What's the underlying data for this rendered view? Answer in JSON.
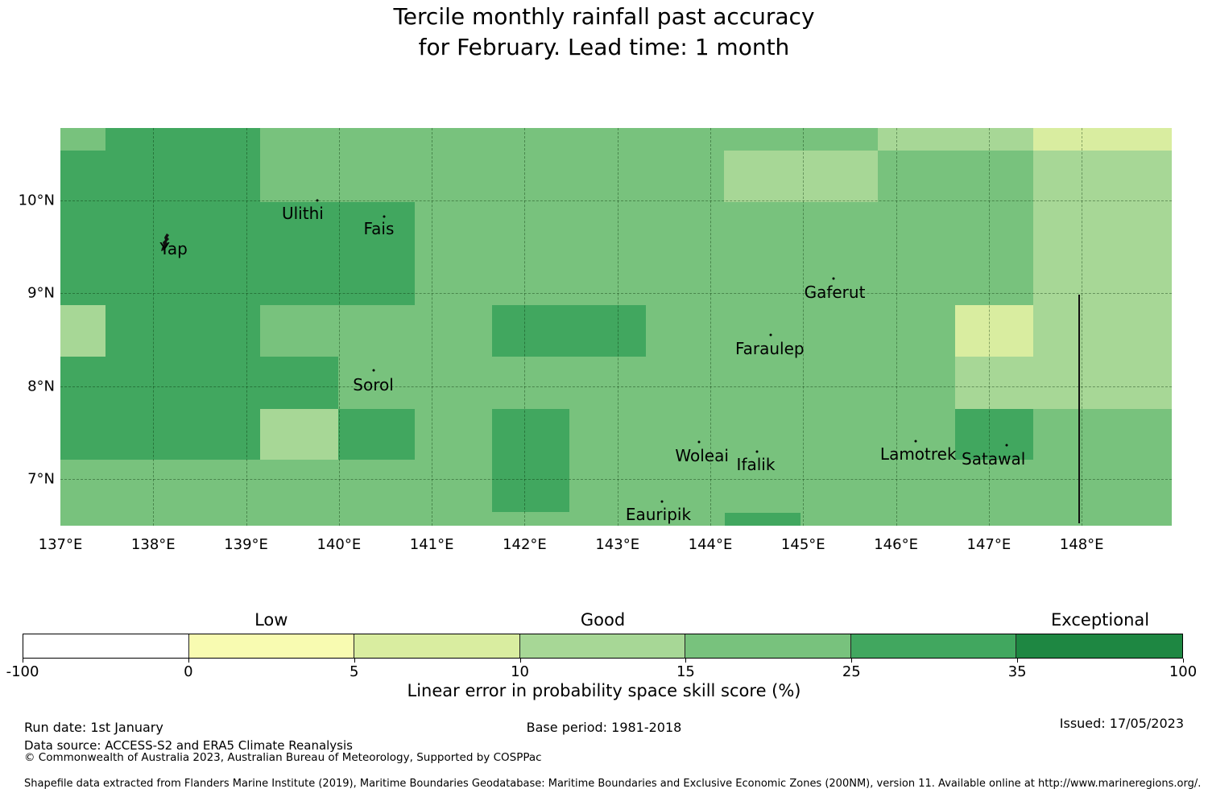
{
  "title": {
    "line1": "Tercile monthly rainfall past accuracy",
    "line2": "for February. Lead time: 1 month"
  },
  "chart_data": {
    "type": "heatmap",
    "subtype": "geographic-skill-map",
    "lon_range": [
      137.0,
      148.97
    ],
    "lat_range": [
      6.5,
      10.78
    ],
    "grid_lons": [
      138,
      139,
      140,
      141,
      142,
      143,
      144,
      145,
      146,
      147,
      148
    ],
    "grid_lats": [
      7,
      8,
      9,
      10
    ],
    "x_ticks": [
      {
        "lon": 137,
        "label": "137°E"
      },
      {
        "lon": 138,
        "label": "138°E"
      },
      {
        "lon": 139,
        "label": "139°E"
      },
      {
        "lon": 140,
        "label": "140°E"
      },
      {
        "lon": 141,
        "label": "141°E"
      },
      {
        "lon": 142,
        "label": "142°E"
      },
      {
        "lon": 143,
        "label": "143°E"
      },
      {
        "lon": 144,
        "label": "144°E"
      },
      {
        "lon": 145,
        "label": "145°E"
      },
      {
        "lon": 146,
        "label": "146°E"
      },
      {
        "lon": 147,
        "label": "147°E"
      },
      {
        "lon": 148,
        "label": "148°E"
      }
    ],
    "y_ticks": [
      {
        "lat": 10,
        "label": "10°N"
      },
      {
        "lat": 9,
        "label": "9°N"
      },
      {
        "lat": 8,
        "label": "8°N"
      },
      {
        "lat": 7,
        "label": "7°N"
      }
    ],
    "bins": [
      {
        "range": "-100 to 0",
        "color": "#ffffff"
      },
      {
        "range": "0 to 5",
        "color": "#f8fbb1"
      },
      {
        "range": "5 to 10",
        "color": "#d9eda0"
      },
      {
        "range": "10 to 15",
        "color": "#a7d796"
      },
      {
        "range": "15 to 25",
        "color": "#78c27d"
      },
      {
        "range": "25 to 35",
        "color": "#41a75f"
      },
      {
        "range": "35 to 100",
        "color": "#1e8742"
      }
    ],
    "background_bin": "15 to 25",
    "regions": [
      {
        "bin": "25 to 35",
        "lon": [
          137.49,
          139.15
        ],
        "lat": [
          10.54,
          10.78
        ]
      },
      {
        "bin": "25 to 35",
        "lon": [
          137.0,
          139.15
        ],
        "lat": [
          9.98,
          10.54
        ]
      },
      {
        "bin": "25 to 35",
        "lon": [
          137.0,
          140.82
        ],
        "lat": [
          8.87,
          9.98
        ]
      },
      {
        "bin": "25 to 35",
        "lon": [
          137.49,
          139.15
        ],
        "lat": [
          8.32,
          8.87
        ]
      },
      {
        "bin": "25 to 35",
        "lon": [
          137.0,
          139.99
        ],
        "lat": [
          7.76,
          8.32
        ]
      },
      {
        "bin": "25 to 35",
        "lon": [
          137.0,
          139.15
        ],
        "lat": [
          7.21,
          7.76
        ]
      },
      {
        "bin": "25 to 35",
        "lon": [
          139.99,
          140.82
        ],
        "lat": [
          7.21,
          7.76
        ]
      },
      {
        "bin": "25 to 35",
        "lon": [
          141.65,
          143.31
        ],
        "lat": [
          8.32,
          8.87
        ]
      },
      {
        "bin": "25 to 35",
        "lon": [
          141.65,
          142.48
        ],
        "lat": [
          6.65,
          7.76
        ]
      },
      {
        "bin": "25 to 35",
        "lon": [
          146.64,
          147.48
        ],
        "lat": [
          7.21,
          7.76
        ]
      },
      {
        "bin": "25 to 35",
        "lon": [
          144.16,
          144.97
        ],
        "lat": [
          6.5,
          6.64
        ]
      },
      {
        "bin": "10 to 15",
        "lon": [
          137.0,
          137.49
        ],
        "lat": [
          8.32,
          8.87
        ]
      },
      {
        "bin": "10 to 15",
        "lon": [
          144.15,
          145.8
        ],
        "lat": [
          9.98,
          10.54
        ]
      },
      {
        "bin": "10 to 15",
        "lon": [
          145.8,
          147.48
        ],
        "lat": [
          10.54,
          10.78
        ]
      },
      {
        "bin": "10 to 15",
        "lon": [
          147.48,
          148.97
        ],
        "lat": [
          7.76,
          10.54
        ]
      },
      {
        "bin": "10 to 15",
        "lon": [
          139.15,
          139.99
        ],
        "lat": [
          7.21,
          7.76
        ]
      },
      {
        "bin": "10 to 15",
        "lon": [
          146.64,
          147.48
        ],
        "lat": [
          7.76,
          8.32
        ]
      },
      {
        "bin": "5 to 10",
        "lon": [
          147.48,
          148.97
        ],
        "lat": [
          10.54,
          10.78
        ]
      },
      {
        "bin": "5 to 10",
        "lon": [
          146.64,
          147.48
        ],
        "lat": [
          8.32,
          8.87
        ]
      }
    ],
    "boundary_line": {
      "lon": 147.97,
      "lat_top": 8.99,
      "lat_bottom": 6.53
    },
    "islands": [
      {
        "name": "Yap",
        "lon": 138.22,
        "lat": 9.48,
        "marker_lon": 138.13,
        "marker_lat": 9.55,
        "marker": "island-outline"
      },
      {
        "name": "Ulithi",
        "lon": 139.61,
        "lat": 9.86,
        "marker_lon": 139.77,
        "marker_lat": 10.0,
        "marker": "dot"
      },
      {
        "name": "Fais",
        "lon": 140.43,
        "lat": 9.7,
        "marker_lon": 140.49,
        "marker_lat": 9.83,
        "marker": "dot"
      },
      {
        "name": "Sorol",
        "lon": 140.37,
        "lat": 8.02,
        "marker_lon": 140.37,
        "marker_lat": 8.17,
        "marker": "dot"
      },
      {
        "name": "Gaferut",
        "lon": 145.34,
        "lat": 9.01,
        "marker_lon": 145.33,
        "marker_lat": 9.16,
        "marker": "dot"
      },
      {
        "name": "Faraulep",
        "lon": 144.64,
        "lat": 8.41,
        "marker_lon": 144.65,
        "marker_lat": 8.55,
        "marker": "dot"
      },
      {
        "name": "Woleai",
        "lon": 143.91,
        "lat": 7.25,
        "marker_lon": 143.88,
        "marker_lat": 7.4,
        "marker": "dot"
      },
      {
        "name": "Ifalik",
        "lon": 144.49,
        "lat": 7.16,
        "marker_lon": 144.5,
        "marker_lat": 7.3,
        "marker": "dot"
      },
      {
        "name": "Lamotrek",
        "lon": 146.24,
        "lat": 7.27,
        "marker_lon": 146.21,
        "marker_lat": 7.41,
        "marker": "dot"
      },
      {
        "name": "Satawal",
        "lon": 147.05,
        "lat": 7.22,
        "marker_lon": 147.19,
        "marker_lat": 7.37,
        "marker": "dot"
      },
      {
        "name": "Eauripik",
        "lon": 143.44,
        "lat": 6.62,
        "marker_lon": 143.48,
        "marker_lat": 6.76,
        "marker": "dot"
      }
    ]
  },
  "colorbar": {
    "tick_labels": [
      "-100",
      "0",
      "5",
      "10",
      "15",
      "25",
      "35",
      "100"
    ],
    "section_labels": [
      {
        "text": "Low",
        "segment_index": 1
      },
      {
        "text": "Good",
        "segment_index": 3
      },
      {
        "text": "Exceptional",
        "segment_index": 6
      }
    ],
    "axis_label": "Linear error in probability space skill score (%)"
  },
  "footer": {
    "run_date": "Run date: 1st January",
    "base_period": "Base period: 1981-2018",
    "issued": "Issued: 17/05/2023",
    "data_source": "Data source: ACCESS-S2 and ERA5 Climate Reanalysis",
    "copyright": "© Commonwealth of Australia 2023, Australian Bureau of Meteorology, Supported by COSPPac",
    "shapefile_note": "Shapefile data extracted from Flanders Marine Institute (2019), Maritime Boundaries Geodatabase: Maritime Boundaries and Exclusive Economic Zones (200NM), version 11. Available online at http://www.marineregions.org/."
  }
}
